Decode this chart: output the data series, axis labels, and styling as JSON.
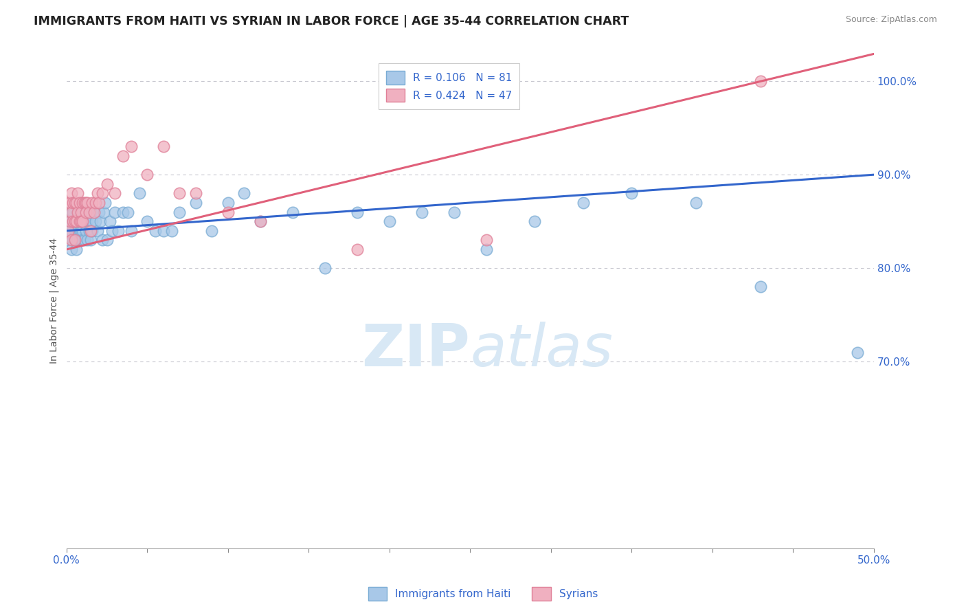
{
  "title": "IMMIGRANTS FROM HAITI VS SYRIAN IN LABOR FORCE | AGE 35-44 CORRELATION CHART",
  "source": "Source: ZipAtlas.com",
  "ylabel": "In Labor Force | Age 35-44",
  "xlim": [
    0.0,
    0.5
  ],
  "ylim": [
    0.5,
    1.03
  ],
  "r_haiti": 0.106,
  "n_haiti": 81,
  "r_syrian": 0.424,
  "n_syrian": 47,
  "haiti_color": "#a8c8e8",
  "haiti_edge_color": "#7aacd4",
  "syrian_color": "#f0b0c0",
  "syrian_edge_color": "#e08098",
  "haiti_line_color": "#3366cc",
  "syrian_line_color": "#e0607a",
  "background_color": "#ffffff",
  "grid_color": "#c8c8d0",
  "title_color": "#222222",
  "watermark_color": "#d8e8f5",
  "axis_color": "#3366cc",
  "haiti_x": [
    0.001,
    0.001,
    0.001,
    0.002,
    0.002,
    0.003,
    0.003,
    0.003,
    0.004,
    0.004,
    0.004,
    0.005,
    0.005,
    0.006,
    0.006,
    0.006,
    0.006,
    0.007,
    0.007,
    0.007,
    0.007,
    0.008,
    0.008,
    0.008,
    0.009,
    0.009,
    0.009,
    0.01,
    0.01,
    0.01,
    0.011,
    0.011,
    0.012,
    0.012,
    0.013,
    0.013,
    0.014,
    0.015,
    0.015,
    0.016,
    0.016,
    0.017,
    0.018,
    0.019,
    0.02,
    0.021,
    0.022,
    0.023,
    0.024,
    0.025,
    0.027,
    0.028,
    0.03,
    0.032,
    0.035,
    0.038,
    0.04,
    0.045,
    0.05,
    0.055,
    0.06,
    0.065,
    0.07,
    0.08,
    0.09,
    0.1,
    0.11,
    0.12,
    0.14,
    0.16,
    0.18,
    0.2,
    0.22,
    0.24,
    0.26,
    0.29,
    0.32,
    0.35,
    0.39,
    0.43,
    0.49
  ],
  "haiti_y": [
    0.86,
    0.83,
    0.85,
    0.85,
    0.84,
    0.86,
    0.84,
    0.82,
    0.85,
    0.83,
    0.86,
    0.84,
    0.83,
    0.85,
    0.84,
    0.83,
    0.82,
    0.86,
    0.85,
    0.84,
    0.83,
    0.86,
    0.84,
    0.83,
    0.85,
    0.84,
    0.83,
    0.86,
    0.84,
    0.83,
    0.85,
    0.83,
    0.85,
    0.84,
    0.85,
    0.83,
    0.84,
    0.86,
    0.83,
    0.85,
    0.84,
    0.86,
    0.85,
    0.84,
    0.86,
    0.85,
    0.83,
    0.86,
    0.87,
    0.83,
    0.85,
    0.84,
    0.86,
    0.84,
    0.86,
    0.86,
    0.84,
    0.88,
    0.85,
    0.84,
    0.84,
    0.84,
    0.86,
    0.87,
    0.84,
    0.87,
    0.88,
    0.85,
    0.86,
    0.8,
    0.86,
    0.85,
    0.86,
    0.86,
    0.82,
    0.85,
    0.87,
    0.88,
    0.87,
    0.78,
    0.71
  ],
  "syrian_x": [
    0.001,
    0.001,
    0.002,
    0.002,
    0.003,
    0.003,
    0.003,
    0.004,
    0.004,
    0.005,
    0.005,
    0.005,
    0.006,
    0.006,
    0.007,
    0.007,
    0.008,
    0.008,
    0.009,
    0.009,
    0.01,
    0.01,
    0.011,
    0.012,
    0.012,
    0.013,
    0.014,
    0.015,
    0.016,
    0.017,
    0.018,
    0.019,
    0.02,
    0.022,
    0.025,
    0.03,
    0.035,
    0.04,
    0.05,
    0.06,
    0.07,
    0.08,
    0.1,
    0.12,
    0.18,
    0.26,
    0.43
  ],
  "syrian_y": [
    0.87,
    0.84,
    0.87,
    0.85,
    0.88,
    0.86,
    0.83,
    0.87,
    0.85,
    0.87,
    0.85,
    0.83,
    0.87,
    0.85,
    0.88,
    0.86,
    0.87,
    0.85,
    0.86,
    0.85,
    0.87,
    0.85,
    0.87,
    0.87,
    0.86,
    0.87,
    0.86,
    0.84,
    0.87,
    0.86,
    0.87,
    0.88,
    0.87,
    0.88,
    0.89,
    0.88,
    0.92,
    0.93,
    0.9,
    0.93,
    0.88,
    0.88,
    0.86,
    0.85,
    0.82,
    0.83,
    1.0
  ]
}
